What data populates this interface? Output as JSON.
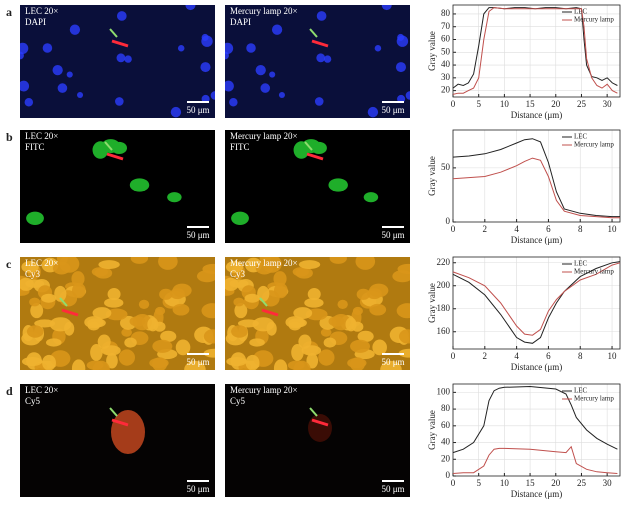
{
  "panels": [
    {
      "label": "a",
      "images": [
        {
          "lines": [
            "LEC 20×",
            "DAPI"
          ],
          "scale": "50 μm"
        },
        {
          "lines": [
            "Mercury lamp 20×",
            "DAPI"
          ],
          "scale": "50 μm"
        }
      ]
    },
    {
      "label": "b",
      "images": [
        {
          "lines": [
            "LEC 20×",
            "FITC"
          ],
          "scale": "50 μm"
        },
        {
          "lines": [
            "Mercury lamp 20×",
            "FITC"
          ],
          "scale": "50 μm"
        }
      ]
    },
    {
      "label": "c",
      "images": [
        {
          "lines": [
            "LEC 20×",
            "Cy3"
          ],
          "scale": "50 μm"
        },
        {
          "lines": [
            "Mercury lamp 20×",
            "Cy3"
          ],
          "scale": "50 μm"
        }
      ]
    },
    {
      "label": "d",
      "images": [
        {
          "lines": [
            "LEC 20×",
            "Cy5"
          ],
          "scale": "50 μm"
        },
        {
          "lines": [
            "Mercury lamp 20×",
            "Cy5"
          ],
          "scale": "50 μm"
        }
      ]
    }
  ],
  "chart_data": [
    {
      "type": "line",
      "x_label": "Distance (μm)",
      "y_label": "Gray value",
      "legend": "upper right",
      "grid": true,
      "xlim": [
        0,
        32.5
      ],
      "xticks": [
        0,
        5,
        10,
        15,
        20,
        25,
        30
      ],
      "ylim": [
        15,
        87
      ],
      "yticks": [
        20,
        30,
        40,
        50,
        60,
        70,
        80
      ],
      "x": [
        0,
        1,
        2,
        3,
        4,
        5,
        6,
        7,
        8,
        10,
        12,
        14,
        16,
        18,
        20,
        22,
        24,
        25,
        25.5,
        26,
        27,
        28,
        29,
        30,
        31,
        32
      ],
      "series": [
        {
          "name": "LEC",
          "color": "#222222",
          "values": [
            22,
            25,
            24,
            26,
            33,
            55,
            80,
            85,
            85,
            84,
            85,
            85,
            84,
            85,
            85,
            84,
            85,
            84,
            60,
            40,
            31,
            30,
            28,
            30,
            26,
            24
          ]
        },
        {
          "name": "Mercury lamp",
          "color": "#c0504d",
          "values": [
            17,
            18,
            18,
            20,
            22,
            30,
            60,
            82,
            85,
            84,
            84,
            84,
            84,
            84,
            84,
            84,
            84,
            84,
            70,
            45,
            30,
            24,
            22,
            25,
            20,
            18
          ]
        }
      ]
    },
    {
      "type": "line",
      "x_label": "Distance (μm)",
      "y_label": "Gray value",
      "legend": "upper right",
      "grid": true,
      "xlim": [
        0,
        10.5
      ],
      "xticks": [
        0,
        2,
        4,
        6,
        8,
        10
      ],
      "ylim": [
        0,
        85
      ],
      "yticks": [
        0,
        50
      ],
      "x": [
        0,
        1,
        2,
        3,
        4,
        4.5,
        5,
        5.5,
        6,
        6.5,
        7,
        8,
        9,
        10,
        10.5
      ],
      "series": [
        {
          "name": "LEC",
          "color": "#222222",
          "values": [
            60,
            61,
            63,
            67,
            73,
            76,
            77,
            74,
            55,
            28,
            12,
            8,
            6,
            5,
            5
          ]
        },
        {
          "name": "Mercury lamp",
          "color": "#c0504d",
          "values": [
            40,
            41,
            42,
            46,
            52,
            56,
            59,
            57,
            42,
            20,
            10,
            6,
            5,
            4,
            4
          ]
        }
      ]
    },
    {
      "type": "line",
      "x_label": "Distance (μm)",
      "y_label": "Gray value",
      "legend": "upper right",
      "grid": true,
      "xlim": [
        0,
        10.5
      ],
      "xticks": [
        0,
        2,
        4,
        6,
        8,
        10
      ],
      "ylim": [
        145,
        225
      ],
      "yticks": [
        160,
        180,
        200,
        220
      ],
      "x": [
        0,
        1,
        2,
        3,
        4,
        4.5,
        5,
        5.5,
        6,
        6.5,
        7,
        8,
        9,
        10,
        10.5
      ],
      "series": [
        {
          "name": "LEC",
          "color": "#222222",
          "values": [
            210,
            203,
            192,
            175,
            155,
            151,
            150,
            155,
            172,
            185,
            195,
            208,
            215,
            220,
            221
          ]
        },
        {
          "name": "Mercury lamp",
          "color": "#c0504d",
          "values": [
            212,
            207,
            200,
            185,
            165,
            158,
            157,
            162,
            178,
            188,
            195,
            205,
            210,
            218,
            220
          ]
        }
      ]
    },
    {
      "type": "line",
      "x_label": "Distance (μm)",
      "y_label": "Gray value",
      "legend": "upper right",
      "grid": true,
      "xlim": [
        0,
        32.5
      ],
      "xticks": [
        0,
        5,
        10,
        15,
        20,
        25,
        30
      ],
      "ylim": [
        0,
        110
      ],
      "yticks": [
        0,
        20,
        40,
        60,
        80,
        100
      ],
      "x": [
        0,
        2,
        4,
        6,
        7,
        8,
        9,
        10,
        15,
        20,
        22,
        23,
        24,
        26,
        28,
        30,
        32
      ],
      "series": [
        {
          "name": "LEC",
          "color": "#222222",
          "values": [
            28,
            32,
            40,
            60,
            90,
            102,
            105,
            106,
            107,
            104,
            98,
            85,
            70,
            55,
            45,
            38,
            32
          ]
        },
        {
          "name": "Mercury lamp",
          "color": "#c0504d",
          "values": [
            3,
            4,
            4,
            12,
            25,
            32,
            33,
            33,
            32,
            29,
            28,
            35,
            15,
            8,
            5,
            4,
            3
          ]
        }
      ]
    }
  ]
}
